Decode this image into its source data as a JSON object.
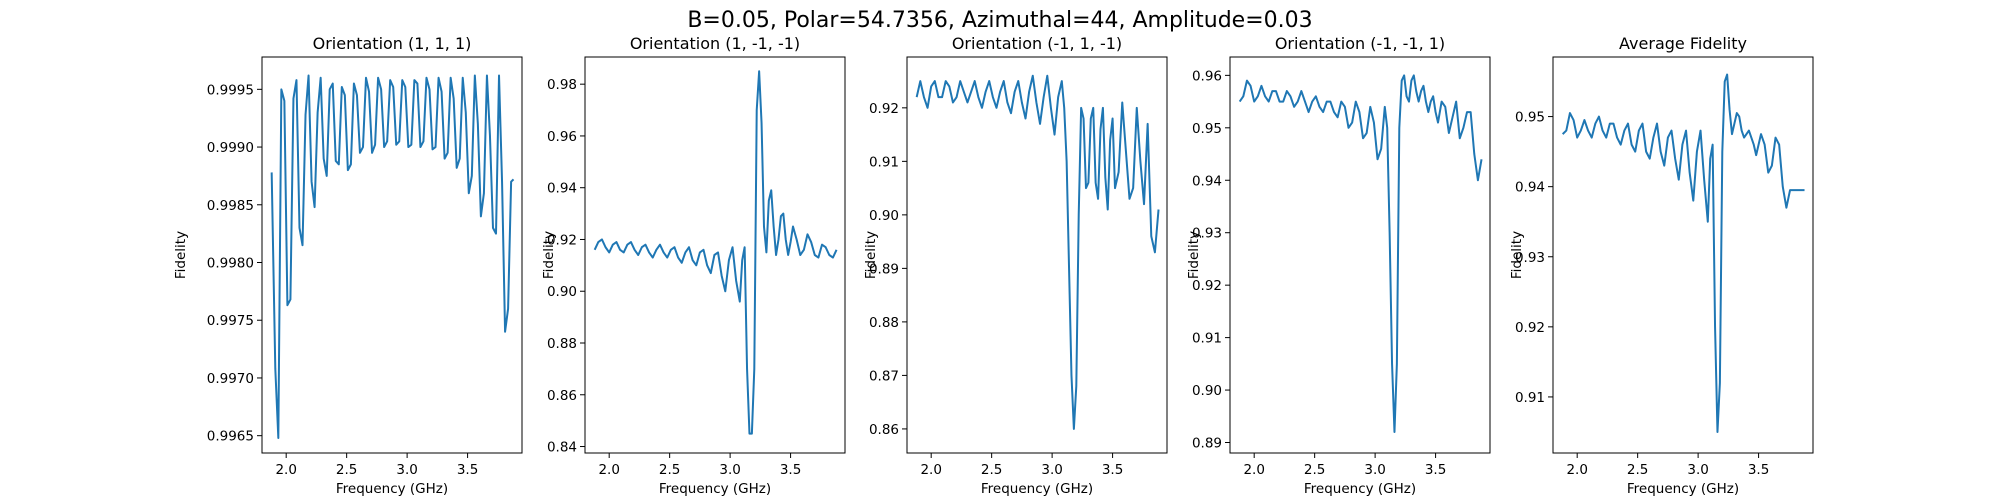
{
  "figure_title": "B=0.05, Polar=54.7356, Azimuthal=44, Amplitude=0.03",
  "colors": {
    "series": "#1f77b4",
    "axes": "#000000",
    "background": "#ffffff"
  },
  "chart_data": [
    {
      "type": "line",
      "title": "Orientation (1, 1, 1)",
      "xlabel": "Frequency (GHz)",
      "ylabel": "Fidelity",
      "xlim": [
        1.8,
        3.95
      ],
      "ylim": [
        0.99635,
        0.99978
      ],
      "xticks": [
        2.0,
        2.5,
        3.0,
        3.5
      ],
      "xtick_labels": [
        "2.0",
        "2.5",
        "3.0",
        "3.5"
      ],
      "yticks": [
        0.9965,
        0.997,
        0.9975,
        0.998,
        0.9985,
        0.999,
        0.9995
      ],
      "ytick_labels": [
        "0.9965",
        "0.9970",
        "0.9975",
        "0.9980",
        "0.9985",
        "0.9990",
        "0.9995"
      ],
      "series": [
        {
          "x": [
            1.88,
            1.91,
            1.935,
            1.96,
            1.985,
            2.01,
            2.035,
            2.06,
            2.085,
            2.11,
            2.135,
            2.16,
            2.185,
            2.21,
            2.235,
            2.26,
            2.285,
            2.31,
            2.335,
            2.36,
            2.385,
            2.41,
            2.435,
            2.46,
            2.485,
            2.51,
            2.535,
            2.56,
            2.585,
            2.61,
            2.635,
            2.66,
            2.685,
            2.71,
            2.735,
            2.76,
            2.785,
            2.81,
            2.835,
            2.86,
            2.885,
            2.91,
            2.935,
            2.96,
            2.985,
            3.01,
            3.035,
            3.06,
            3.085,
            3.11,
            3.135,
            3.16,
            3.185,
            3.21,
            3.235,
            3.26,
            3.285,
            3.31,
            3.335,
            3.36,
            3.385,
            3.41,
            3.435,
            3.46,
            3.485,
            3.51,
            3.535,
            3.56,
            3.585,
            3.61,
            3.635,
            3.66,
            3.685,
            3.71,
            3.735,
            3.76,
            3.785,
            3.81,
            3.835,
            3.86,
            3.88
          ],
          "y": [
            0.99878,
            0.99708,
            0.99648,
            0.9995,
            0.9994,
            0.99763,
            0.99768,
            0.99942,
            0.99958,
            0.9983,
            0.99815,
            0.99928,
            0.99962,
            0.9987,
            0.99848,
            0.9993,
            0.9996,
            0.9989,
            0.99875,
            0.9995,
            0.99955,
            0.99888,
            0.99885,
            0.99952,
            0.99945,
            0.9988,
            0.99885,
            0.99955,
            0.99945,
            0.99895,
            0.999,
            0.9996,
            0.99948,
            0.99895,
            0.99902,
            0.9996,
            0.9995,
            0.999,
            0.99905,
            0.99958,
            0.99952,
            0.99902,
            0.99905,
            0.99958,
            0.99952,
            0.999,
            0.99902,
            0.99958,
            0.99955,
            0.999,
            0.99905,
            0.9996,
            0.9995,
            0.99898,
            0.999,
            0.9996,
            0.99948,
            0.9989,
            0.99895,
            0.9996,
            0.99942,
            0.99882,
            0.9989,
            0.9996,
            0.9993,
            0.9986,
            0.99875,
            0.99962,
            0.9992,
            0.9984,
            0.9986,
            0.99962,
            0.9991,
            0.9983,
            0.99825,
            0.99962,
            0.9987,
            0.9974,
            0.9976,
            0.9987,
            0.99872
          ]
        }
      ]
    },
    {
      "type": "line",
      "title": "Orientation (1, -1, -1)",
      "xlabel": "Frequency (GHz)",
      "ylabel": "Fidelity",
      "xlim": [
        1.8,
        3.95
      ],
      "ylim": [
        0.8375,
        0.9905
      ],
      "xticks": [
        2.0,
        2.5,
        3.0,
        3.5
      ],
      "xtick_labels": [
        "2.0",
        "2.5",
        "3.0",
        "3.5"
      ],
      "yticks": [
        0.84,
        0.86,
        0.88,
        0.9,
        0.92,
        0.94,
        0.96,
        0.98
      ],
      "ytick_labels": [
        "0.84",
        "0.86",
        "0.88",
        "0.90",
        "0.92",
        "0.94",
        "0.96",
        "0.98"
      ],
      "series": [
        {
          "x": [
            1.88,
            1.91,
            1.94,
            1.97,
            2.0,
            2.03,
            2.06,
            2.09,
            2.12,
            2.15,
            2.18,
            2.21,
            2.24,
            2.27,
            2.3,
            2.33,
            2.36,
            2.39,
            2.42,
            2.45,
            2.48,
            2.51,
            2.54,
            2.57,
            2.6,
            2.63,
            2.66,
            2.69,
            2.72,
            2.75,
            2.78,
            2.81,
            2.84,
            2.87,
            2.9,
            2.93,
            2.96,
            2.99,
            3.02,
            3.05,
            3.08,
            3.1,
            3.12,
            3.14,
            3.16,
            3.18,
            3.2,
            3.22,
            3.24,
            3.26,
            3.28,
            3.3,
            3.32,
            3.34,
            3.36,
            3.38,
            3.4,
            3.42,
            3.44,
            3.46,
            3.48,
            3.5,
            3.52,
            3.55,
            3.58,
            3.61,
            3.64,
            3.67,
            3.7,
            3.73,
            3.76,
            3.79,
            3.82,
            3.85,
            3.88
          ],
          "y": [
            0.916,
            0.919,
            0.92,
            0.917,
            0.915,
            0.918,
            0.919,
            0.916,
            0.915,
            0.918,
            0.919,
            0.916,
            0.914,
            0.917,
            0.918,
            0.915,
            0.913,
            0.916,
            0.918,
            0.915,
            0.913,
            0.916,
            0.917,
            0.913,
            0.911,
            0.915,
            0.917,
            0.912,
            0.91,
            0.915,
            0.916,
            0.91,
            0.907,
            0.914,
            0.915,
            0.906,
            0.9,
            0.912,
            0.917,
            0.904,
            0.896,
            0.912,
            0.917,
            0.87,
            0.845,
            0.845,
            0.87,
            0.97,
            0.985,
            0.965,
            0.925,
            0.915,
            0.935,
            0.939,
            0.925,
            0.914,
            0.92,
            0.929,
            0.93,
            0.92,
            0.914,
            0.919,
            0.925,
            0.92,
            0.914,
            0.916,
            0.922,
            0.919,
            0.914,
            0.913,
            0.918,
            0.917,
            0.914,
            0.913,
            0.916
          ]
        }
      ]
    },
    {
      "type": "line",
      "title": "Orientation (-1, 1, -1)",
      "xlabel": "Frequency (GHz)",
      "ylabel": "Fidelity",
      "xlim": [
        1.8,
        3.95
      ],
      "ylim": [
        0.8555,
        0.9295
      ],
      "xticks": [
        2.0,
        2.5,
        3.0,
        3.5
      ],
      "xtick_labels": [
        "2.0",
        "2.5",
        "3.0",
        "3.5"
      ],
      "yticks": [
        0.86,
        0.87,
        0.88,
        0.89,
        0.9,
        0.91,
        0.92
      ],
      "ytick_labels": [
        "0.86",
        "0.87",
        "0.88",
        "0.89",
        "0.90",
        "0.91",
        "0.92"
      ],
      "series": [
        {
          "x": [
            1.88,
            1.91,
            1.94,
            1.97,
            2.0,
            2.03,
            2.06,
            2.09,
            2.12,
            2.15,
            2.18,
            2.21,
            2.24,
            2.27,
            2.3,
            2.33,
            2.36,
            2.39,
            2.42,
            2.45,
            2.48,
            2.51,
            2.54,
            2.57,
            2.6,
            2.63,
            2.66,
            2.69,
            2.72,
            2.75,
            2.78,
            2.81,
            2.84,
            2.87,
            2.9,
            2.93,
            2.96,
            2.99,
            3.02,
            3.05,
            3.08,
            3.1,
            3.12,
            3.14,
            3.16,
            3.18,
            3.2,
            3.22,
            3.24,
            3.26,
            3.28,
            3.3,
            3.32,
            3.34,
            3.36,
            3.38,
            3.4,
            3.42,
            3.44,
            3.46,
            3.48,
            3.5,
            3.52,
            3.55,
            3.58,
            3.61,
            3.64,
            3.67,
            3.7,
            3.73,
            3.76,
            3.79,
            3.82,
            3.85,
            3.88
          ],
          "y": [
            0.922,
            0.925,
            0.922,
            0.92,
            0.924,
            0.925,
            0.922,
            0.922,
            0.925,
            0.924,
            0.921,
            0.922,
            0.925,
            0.923,
            0.921,
            0.923,
            0.925,
            0.922,
            0.92,
            0.923,
            0.925,
            0.922,
            0.92,
            0.923,
            0.925,
            0.921,
            0.919,
            0.923,
            0.925,
            0.921,
            0.918,
            0.923,
            0.926,
            0.921,
            0.917,
            0.922,
            0.926,
            0.92,
            0.915,
            0.922,
            0.925,
            0.92,
            0.91,
            0.89,
            0.87,
            0.86,
            0.868,
            0.9,
            0.92,
            0.918,
            0.905,
            0.906,
            0.918,
            0.92,
            0.906,
            0.903,
            0.916,
            0.92,
            0.907,
            0.901,
            0.914,
            0.918,
            0.905,
            0.908,
            0.921,
            0.912,
            0.903,
            0.905,
            0.92,
            0.91,
            0.902,
            0.917,
            0.896,
            0.893,
            0.901
          ]
        }
      ]
    },
    {
      "type": "line",
      "title": "Orientation (-1, -1, 1)",
      "xlabel": "Frequency (GHz)",
      "ylabel": "Fidelity",
      "xlim": [
        1.8,
        3.95
      ],
      "ylim": [
        0.888,
        0.9635
      ],
      "xticks": [
        2.0,
        2.5,
        3.0,
        3.5
      ],
      "xtick_labels": [
        "2.0",
        "2.5",
        "3.0",
        "3.5"
      ],
      "yticks": [
        0.89,
        0.9,
        0.91,
        0.92,
        0.93,
        0.94,
        0.95,
        0.96
      ],
      "ytick_labels": [
        "0.89",
        "0.90",
        "0.91",
        "0.92",
        "0.93",
        "0.94",
        "0.95",
        "0.96"
      ],
      "series": [
        {
          "x": [
            1.88,
            1.91,
            1.94,
            1.97,
            2.0,
            2.03,
            2.06,
            2.09,
            2.12,
            2.15,
            2.18,
            2.21,
            2.24,
            2.27,
            2.3,
            2.33,
            2.36,
            2.39,
            2.42,
            2.45,
            2.48,
            2.51,
            2.54,
            2.57,
            2.6,
            2.63,
            2.66,
            2.69,
            2.72,
            2.75,
            2.78,
            2.81,
            2.84,
            2.87,
            2.9,
            2.93,
            2.96,
            2.99,
            3.02,
            3.05,
            3.08,
            3.1,
            3.12,
            3.14,
            3.16,
            3.18,
            3.2,
            3.22,
            3.24,
            3.26,
            3.28,
            3.3,
            3.32,
            3.34,
            3.36,
            3.38,
            3.4,
            3.42,
            3.44,
            3.46,
            3.48,
            3.5,
            3.52,
            3.55,
            3.58,
            3.61,
            3.64,
            3.67,
            3.7,
            3.73,
            3.76,
            3.79,
            3.82,
            3.85,
            3.88
          ],
          "y": [
            0.955,
            0.956,
            0.959,
            0.958,
            0.955,
            0.956,
            0.958,
            0.956,
            0.955,
            0.957,
            0.957,
            0.955,
            0.955,
            0.957,
            0.956,
            0.954,
            0.955,
            0.957,
            0.955,
            0.953,
            0.955,
            0.956,
            0.954,
            0.953,
            0.955,
            0.955,
            0.953,
            0.952,
            0.955,
            0.954,
            0.95,
            0.951,
            0.955,
            0.953,
            0.948,
            0.949,
            0.954,
            0.951,
            0.944,
            0.946,
            0.954,
            0.95,
            0.93,
            0.905,
            0.892,
            0.905,
            0.95,
            0.959,
            0.96,
            0.956,
            0.955,
            0.959,
            0.96,
            0.957,
            0.955,
            0.957,
            0.958,
            0.955,
            0.953,
            0.955,
            0.956,
            0.953,
            0.951,
            0.955,
            0.954,
            0.949,
            0.952,
            0.955,
            0.948,
            0.95,
            0.953,
            0.953,
            0.945,
            0.94,
            0.944
          ]
        }
      ]
    },
    {
      "type": "line",
      "title": "Average Fidelity",
      "xlabel": "Frequency (GHz)",
      "ylabel": "Fidelity",
      "xlim": [
        1.8,
        3.95
      ],
      "ylim": [
        0.902,
        0.9585
      ],
      "xticks": [
        2.0,
        2.5,
        3.0,
        3.5
      ],
      "xtick_labels": [
        "2.0",
        "2.5",
        "3.0",
        "3.5"
      ],
      "yticks": [
        0.91,
        0.92,
        0.93,
        0.94,
        0.95
      ],
      "ytick_labels": [
        "0.91",
        "0.92",
        "0.93",
        "0.94",
        "0.95"
      ],
      "series": [
        {
          "x": [
            1.88,
            1.91,
            1.94,
            1.97,
            2.0,
            2.03,
            2.06,
            2.09,
            2.12,
            2.15,
            2.18,
            2.21,
            2.24,
            2.27,
            2.3,
            2.33,
            2.36,
            2.39,
            2.42,
            2.45,
            2.48,
            2.51,
            2.54,
            2.57,
            2.6,
            2.63,
            2.66,
            2.69,
            2.72,
            2.75,
            2.78,
            2.81,
            2.84,
            2.87,
            2.9,
            2.93,
            2.96,
            2.99,
            3.02,
            3.05,
            3.08,
            3.1,
            3.12,
            3.14,
            3.16,
            3.18,
            3.2,
            3.22,
            3.24,
            3.26,
            3.28,
            3.3,
            3.32,
            3.34,
            3.36,
            3.38,
            3.4,
            3.42,
            3.44,
            3.46,
            3.48,
            3.5,
            3.52,
            3.55,
            3.58,
            3.61,
            3.64,
            3.67,
            3.7,
            3.73,
            3.76,
            3.79,
            3.82,
            3.85,
            3.88
          ],
          "y": [
            0.9475,
            0.948,
            0.9505,
            0.9495,
            0.947,
            0.948,
            0.9495,
            0.948,
            0.947,
            0.949,
            0.95,
            0.948,
            0.947,
            0.949,
            0.949,
            0.947,
            0.946,
            0.948,
            0.949,
            0.946,
            0.945,
            0.948,
            0.949,
            0.945,
            0.944,
            0.947,
            0.949,
            0.945,
            0.943,
            0.947,
            0.948,
            0.944,
            0.941,
            0.946,
            0.948,
            0.942,
            0.938,
            0.945,
            0.948,
            0.941,
            0.935,
            0.944,
            0.946,
            0.92,
            0.905,
            0.912,
            0.945,
            0.955,
            0.956,
            0.951,
            0.9475,
            0.949,
            0.9505,
            0.95,
            0.948,
            0.947,
            0.9475,
            0.948,
            0.947,
            0.946,
            0.9445,
            0.946,
            0.9475,
            0.946,
            0.942,
            0.943,
            0.947,
            0.946,
            0.94,
            0.937,
            0.9395,
            0.9395,
            0.9395,
            0.9395,
            0.9395
          ],
          "note": ""
        }
      ]
    }
  ]
}
